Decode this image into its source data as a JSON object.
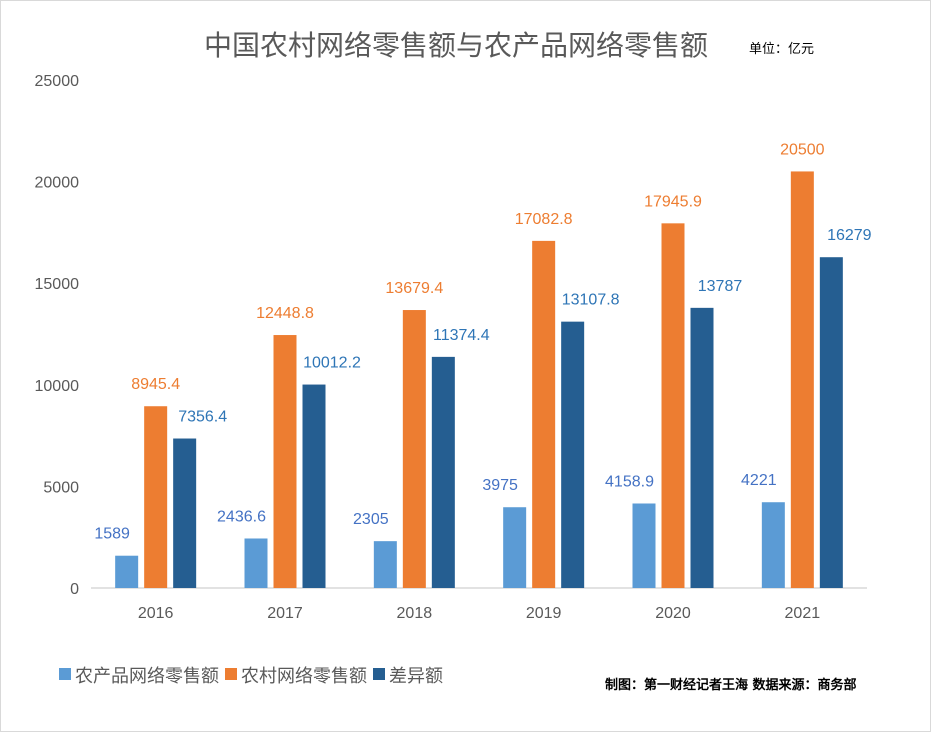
{
  "chart_data": {
    "type": "bar",
    "title": "中国农村网络零售额与农产品网络零售额",
    "unit_note": "单位：亿元",
    "categories": [
      "2016",
      "2017",
      "2018",
      "2019",
      "2020",
      "2021"
    ],
    "series": [
      {
        "name": "农产品网络零售额",
        "color": "#5B9BD5",
        "label_color": "#4472C4",
        "values": [
          1589,
          2436.6,
          2305,
          3975,
          4158.9,
          4221
        ]
      },
      {
        "name": "农村网络零售额",
        "color": "#ED7D31",
        "label_color": "#ED7D31",
        "values": [
          8945.4,
          12448.8,
          13679.4,
          17082.8,
          17945.9,
          20500
        ]
      },
      {
        "name": "差异额",
        "color": "#255E91",
        "label_color": "#2E75B6",
        "values": [
          7356.4,
          10012.2,
          11374.4,
          13107.8,
          13787,
          16279
        ]
      }
    ],
    "ylim": [
      0,
      25000
    ],
    "yticks": [
      0,
      5000,
      10000,
      15000,
      20000,
      25000
    ],
    "grid": false,
    "legend_position": "bottom-left",
    "credit": "制图：第一财经记者王海 数据来源：商务部"
  }
}
